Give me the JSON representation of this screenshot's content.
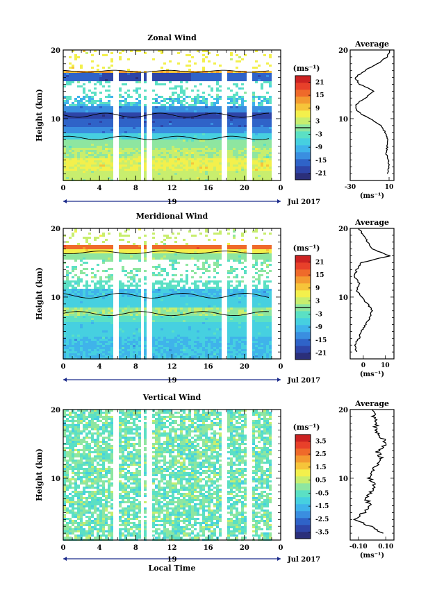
{
  "colors": [
    "#2b2f7a",
    "#2e45a8",
    "#2f63c8",
    "#3a8ee0",
    "#3fb3ea",
    "#46d0e0",
    "#5be0c4",
    "#8ee6a0",
    "#c8ee6e",
    "#f3f04c",
    "#f6c43a",
    "#f39a30",
    "#ef6a2a",
    "#e8402a",
    "#cc2222"
  ],
  "chart_data": [
    {
      "type": "heatmap",
      "title": "Zonal Wind",
      "ylabel": "Height (km)",
      "xlabel": "",
      "x_ticks": [
        "0",
        "4",
        "8",
        "12",
        "16",
        "20",
        "0"
      ],
      "y_ticks": [
        "20",
        "10"
      ],
      "date_marker": "19",
      "month_label": "Jul 2017",
      "unit_label": "(ms⁻¹)",
      "colorbar_ticks": [
        "21",
        "15",
        "9",
        "3",
        "-3",
        "-9",
        "-15",
        "-21"
      ],
      "contour_levels": [
        0
      ],
      "ylim": [
        1,
        20
      ],
      "xlim": [
        0,
        24
      ],
      "profile": {
        "title": "Average",
        "xlabel": "(ms⁻¹)",
        "x_ticks": [
          "-30",
          "10"
        ],
        "y_ticks": [
          "20",
          "10"
        ],
        "xlim": [
          -30,
          15
        ],
        "heights": [
          2,
          3,
          4,
          5,
          6,
          7,
          8,
          9,
          10,
          11,
          12,
          13,
          14,
          15,
          16,
          17,
          18,
          19,
          20
        ],
        "values": [
          8,
          10,
          9,
          7,
          8,
          8,
          6,
          2,
          -10,
          -22,
          -25,
          -15,
          -5,
          -20,
          -25,
          -15,
          -2,
          8,
          11
        ]
      }
    },
    {
      "type": "heatmap",
      "title": "Meridional Wind",
      "ylabel": "Height (km)",
      "xlabel": "",
      "x_ticks": [
        "0",
        "4",
        "8",
        "12",
        "16",
        "20",
        "0"
      ],
      "y_ticks": [
        "20",
        "10"
      ],
      "date_marker": "19",
      "month_label": "Jul 2017",
      "unit_label": "(ms⁻¹)",
      "colorbar_ticks": [
        "21",
        "15",
        "9",
        "3",
        "-3",
        "-9",
        "-15",
        "-21"
      ],
      "contour_levels": [
        0
      ],
      "ylim": [
        1,
        20
      ],
      "xlim": [
        0,
        24
      ],
      "profile": {
        "title": "Average",
        "xlabel": "(ms⁻¹)",
        "x_ticks": [
          "0",
          "10"
        ],
        "y_ticks": [
          "20",
          "10"
        ],
        "xlim": [
          -6,
          14
        ],
        "heights": [
          2,
          3,
          4,
          5,
          6,
          7,
          8,
          9,
          10,
          11,
          12,
          13,
          14,
          15,
          16,
          17,
          18,
          19,
          20
        ],
        "values": [
          -3,
          -4,
          -2,
          -1,
          1,
          3,
          4,
          2,
          -1,
          -3,
          -2,
          -4,
          -3,
          -1,
          12,
          4,
          2,
          0,
          -2
        ]
      }
    },
    {
      "type": "heatmap",
      "title": "Vertical Wind",
      "ylabel": "Height (km)",
      "xlabel": "Local Time",
      "x_ticks": [
        "0",
        "4",
        "8",
        "12",
        "16",
        "20",
        "0"
      ],
      "y_ticks": [
        "20",
        "10"
      ],
      "date_marker": "19",
      "month_label": "Jul 2017",
      "unit_label": "(ms⁻¹)",
      "colorbar_ticks": [
        "3.5",
        "2.5",
        "1.5",
        "0.5",
        "-0.5",
        "-1.5",
        "-2.5",
        "-3.5"
      ],
      "ylim": [
        1,
        20
      ],
      "xlim": [
        0,
        24
      ],
      "profile": {
        "title": "Average",
        "xlabel": "(ms⁻¹)",
        "x_ticks": [
          "-0.10",
          "0.10"
        ],
        "y_ticks": [
          "20",
          "10"
        ],
        "xlim": [
          -0.16,
          0.16
        ],
        "heights": [
          2,
          3,
          4,
          5,
          6,
          7,
          8,
          9,
          10,
          11,
          12,
          13,
          14,
          15,
          16,
          17,
          18,
          19,
          20
        ],
        "values": [
          0.08,
          -0.02,
          -0.12,
          -0.06,
          -0.02,
          -0.04,
          -0.01,
          0.02,
          -0.02,
          0.01,
          0.03,
          0.06,
          0.04,
          0.1,
          0.07,
          0.02,
          0.04,
          0.01,
          0.0
        ]
      }
    }
  ]
}
